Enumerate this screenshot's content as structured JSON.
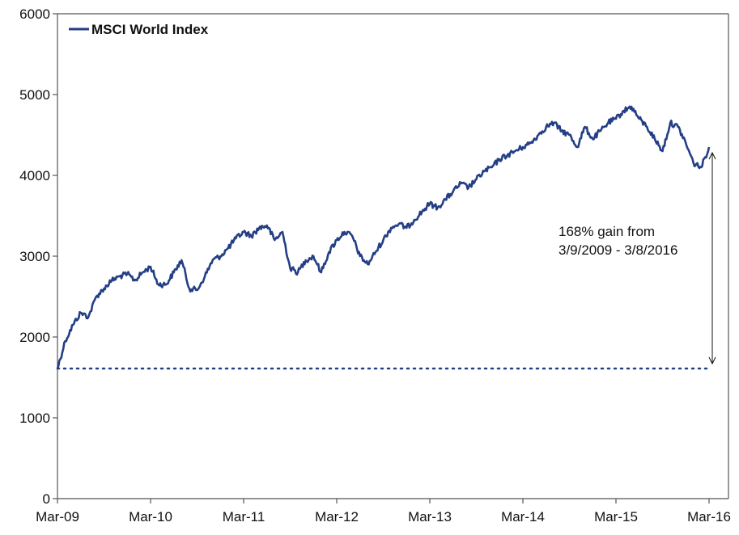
{
  "chart_data": {
    "type": "line",
    "title": "",
    "xlabel": "",
    "ylabel": "",
    "ylim": [
      0,
      6000
    ],
    "y_ticks": [
      "0",
      "1000",
      "2000",
      "3000",
      "4000",
      "5000",
      "6000"
    ],
    "x_tick_labels": [
      "Mar-09",
      "Mar-10",
      "Mar-11",
      "Mar-12",
      "Mar-13",
      "Mar-14",
      "Mar-15",
      "Mar-16"
    ],
    "xlim": [
      "2009-03",
      "2016-03"
    ],
    "grid": false,
    "legend_position": "top-left",
    "colors": {
      "series": "#243f85",
      "axis": "#555555",
      "text": "#111111"
    },
    "series": [
      {
        "name": "MSCI World Index",
        "x": [
          "2009-03",
          "2009-04",
          "2009-05",
          "2009-06",
          "2009-07",
          "2009-08",
          "2009-09",
          "2009-10",
          "2009-11",
          "2009-12",
          "2010-01",
          "2010-02",
          "2010-03",
          "2010-04",
          "2010-05",
          "2010-06",
          "2010-07",
          "2010-08",
          "2010-09",
          "2010-10",
          "2010-11",
          "2010-12",
          "2011-01",
          "2011-02",
          "2011-03",
          "2011-04",
          "2011-05",
          "2011-06",
          "2011-07",
          "2011-08",
          "2011-09",
          "2011-10",
          "2011-11",
          "2011-12",
          "2012-01",
          "2012-02",
          "2012-03",
          "2012-04",
          "2012-05",
          "2012-06",
          "2012-07",
          "2012-08",
          "2012-09",
          "2012-10",
          "2012-11",
          "2012-12",
          "2013-01",
          "2013-02",
          "2013-03",
          "2013-04",
          "2013-05",
          "2013-06",
          "2013-07",
          "2013-08",
          "2013-09",
          "2013-10",
          "2013-11",
          "2013-12",
          "2014-01",
          "2014-02",
          "2014-03",
          "2014-04",
          "2014-05",
          "2014-06",
          "2014-07",
          "2014-08",
          "2014-09",
          "2014-10",
          "2014-11",
          "2014-12",
          "2015-01",
          "2015-02",
          "2015-03",
          "2015-04",
          "2015-05",
          "2015-06",
          "2015-07",
          "2015-08",
          "2015-09",
          "2015-10",
          "2015-11",
          "2015-12",
          "2016-01",
          "2016-02",
          "2016-03"
        ],
        "values": [
          1610,
          1950,
          2150,
          2300,
          2250,
          2500,
          2600,
          2700,
          2750,
          2780,
          2700,
          2800,
          2870,
          2650,
          2650,
          2800,
          2950,
          2600,
          2580,
          2750,
          2950,
          3000,
          3100,
          3220,
          3300,
          3250,
          3350,
          3380,
          3200,
          3300,
          2850,
          2800,
          2950,
          3000,
          2800,
          3050,
          3200,
          3300,
          3250,
          3000,
          2900,
          3050,
          3200,
          3350,
          3400,
          3350,
          3450,
          3550,
          3650,
          3600,
          3700,
          3800,
          3900,
          3850,
          3950,
          4050,
          4100,
          4200,
          4250,
          4300,
          4350,
          4400,
          4500,
          4600,
          4650,
          4550,
          4500,
          4350,
          4600,
          4450,
          4550,
          4650,
          4700,
          4800,
          4850,
          4700,
          4600,
          4450,
          4300,
          4650,
          4600,
          4400,
          4150,
          4100,
          4350
        ]
      }
    ],
    "baseline": {
      "value": 1610,
      "style": "dotted"
    },
    "annotation": {
      "line1": "168% gain from",
      "line2": "3/9/2009 - 3/8/2016",
      "arrow_from": 4300,
      "arrow_to": 1610
    }
  }
}
